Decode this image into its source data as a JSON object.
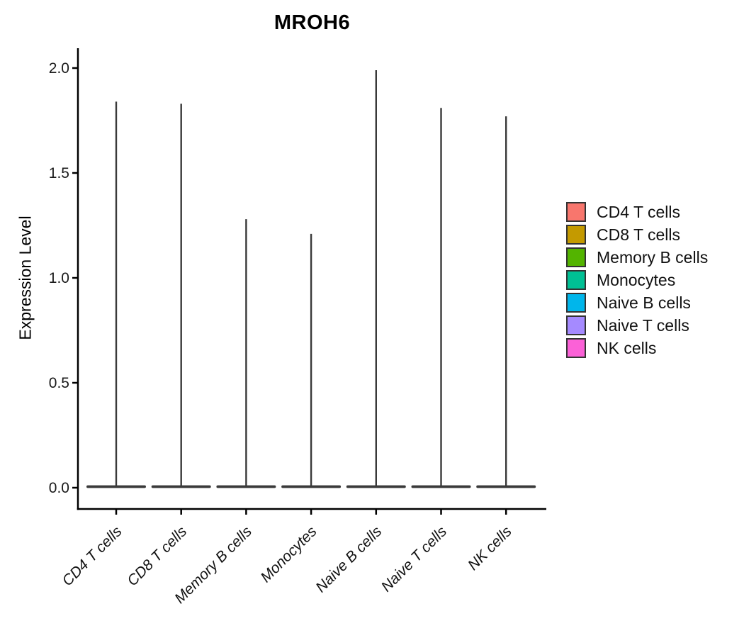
{
  "chart_data": {
    "type": "violin",
    "title": "MROH6",
    "xlabel": "",
    "ylabel": "Expression Level",
    "categories": [
      "CD4 T cells",
      "CD8 T cells",
      "Memory B cells",
      "Monocytes",
      "Naive B cells",
      "Naive T cells",
      "NK cells"
    ],
    "series": [
      {
        "name": "max expression (violin spike top)",
        "values": [
          1.84,
          1.83,
          1.28,
          1.21,
          1.99,
          1.81,
          1.77
        ]
      },
      {
        "name": "density bulk (violin body)",
        "values": [
          0,
          0,
          0,
          0,
          0,
          0,
          0
        ]
      }
    ],
    "shape_note": "Each violin is flattened at 0 (nearly all cells at zero expression) with a thin vertical spike up to the max value.",
    "yticks": [
      "0.0",
      "0.5",
      "1.0",
      "1.5",
      "2.0"
    ],
    "ylim": [
      0,
      2.1
    ],
    "grid": false,
    "legend_position": "right",
    "colors": [
      "#F8766D",
      "#C49A00",
      "#53B400",
      "#00C094",
      "#00B6EB",
      "#A58AFF",
      "#FB61D7"
    ],
    "outline_color": "#3A3A3A",
    "axis_color": "#000000",
    "tick_label_color": "#1a1a1a",
    "x_label_style": "italic, rotated 45deg"
  }
}
